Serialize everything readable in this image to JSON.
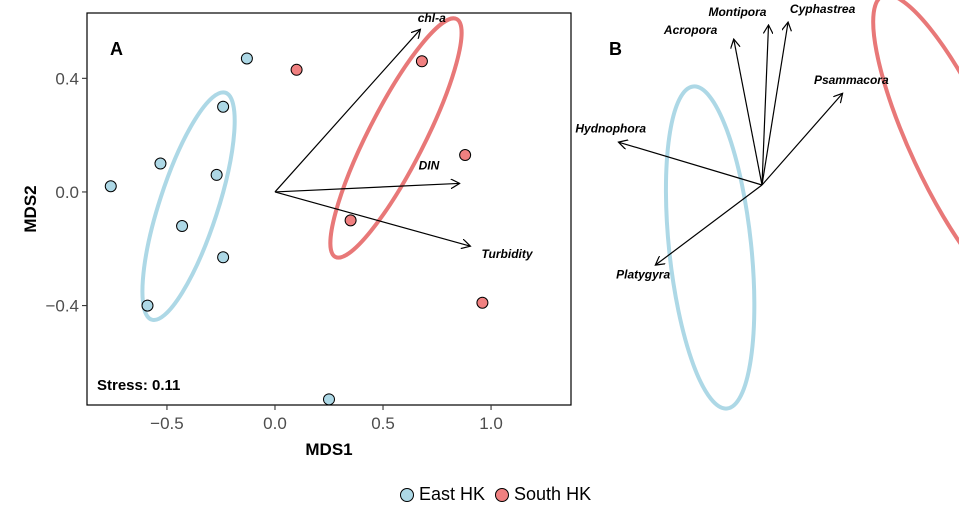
{
  "colors": {
    "east": "#add8e6",
    "south": "#f08080",
    "east_ellipse": "#add8e6",
    "south_ellipse": "#e87878"
  },
  "chart_data": [
    {
      "type": "scatter",
      "panel": "A",
      "xlabel": "MDS1",
      "ylabel": "MDS2",
      "xlim": [
        -0.87,
        1.37
      ],
      "ylim": [
        -0.75,
        0.63
      ],
      "xticks": [
        -0.5,
        0.0,
        0.5,
        1.0
      ],
      "xtick_labels": [
        "−0.5",
        "0.0",
        "0.5",
        "1.0"
      ],
      "yticks": [
        -0.4,
        0.0,
        0.4
      ],
      "ytick_labels": [
        "−0.4",
        "0.0",
        "0.4"
      ],
      "stress": "Stress: 0.11",
      "series": [
        {
          "name": "East HK",
          "color": "east",
          "points": [
            [
              -0.76,
              0.02
            ],
            [
              -0.13,
              0.47
            ],
            [
              -0.24,
              0.3
            ],
            [
              -0.53,
              0.1
            ],
            [
              -0.27,
              0.06
            ],
            [
              -0.43,
              -0.12
            ],
            [
              -0.24,
              -0.23
            ],
            [
              -0.59,
              -0.4
            ],
            [
              0.25,
              -0.73
            ]
          ]
        },
        {
          "name": "South HK",
          "color": "south",
          "points": [
            [
              0.1,
              0.43
            ],
            [
              0.68,
              0.46
            ],
            [
              0.88,
              0.13
            ],
            [
              0.35,
              -0.1
            ],
            [
              0.96,
              -0.39
            ]
          ]
        }
      ],
      "ellipses": [
        {
          "group": "East HK",
          "cx": -0.4,
          "cy": -0.05,
          "rx": 0.135,
          "ry": 0.42,
          "angle": 18
        },
        {
          "group": "South HK",
          "cx": 0.56,
          "cy": 0.19,
          "rx": 0.13,
          "ry": 0.47,
          "angle": 27
        }
      ],
      "vectors": [
        {
          "label": "chl-a",
          "x": 0.67,
          "y": 0.57
        },
        {
          "label": "DIN",
          "x": 0.85,
          "y": 0.03
        },
        {
          "label": "Turbidity",
          "x": 0.9,
          "y": -0.19
        }
      ]
    },
    {
      "type": "scatter",
      "panel": "B",
      "vectors": [
        {
          "label": "Acropora",
          "x": -0.13,
          "y": 0.51
        },
        {
          "label": "Montipora",
          "x": 0.03,
          "y": 0.56
        },
        {
          "label": "Cyphastrea",
          "x": 0.12,
          "y": 0.57
        },
        {
          "label": "Psammacora",
          "x": 0.37,
          "y": 0.32
        },
        {
          "label": "Hydnophora",
          "x": -0.66,
          "y": 0.15
        },
        {
          "label": "Platygyra",
          "x": -0.49,
          "y": -0.28
        }
      ],
      "ellipses": [
        {
          "group": "East HK",
          "cx": -0.24,
          "cy": -0.22,
          "rx": 0.19,
          "ry": 0.57,
          "angle": 6
        },
        {
          "group": "South HK",
          "cx": 0.88,
          "cy": 0.14,
          "rx": 0.19,
          "ry": 0.58,
          "angle": 25
        }
      ]
    }
  ],
  "legend": [
    {
      "label": "East HK",
      "color": "east"
    },
    {
      "label": "South HK",
      "color": "south"
    }
  ]
}
